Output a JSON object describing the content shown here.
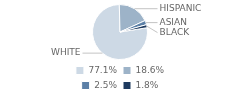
{
  "chart_data": {
    "type": "pie",
    "categories": [
      "WHITE",
      "HISPANIC",
      "ASIAN",
      "BLACK"
    ],
    "values": [
      77.1,
      18.6,
      2.5,
      1.8
    ],
    "value_labels": [
      "77.1%",
      "18.6%",
      "2.5%",
      "1.8%"
    ],
    "colors": [
      "#cdd9e5",
      "#9db3c8",
      "#5b7fa6",
      "#1e3a5f"
    ],
    "legend": "bottom"
  }
}
